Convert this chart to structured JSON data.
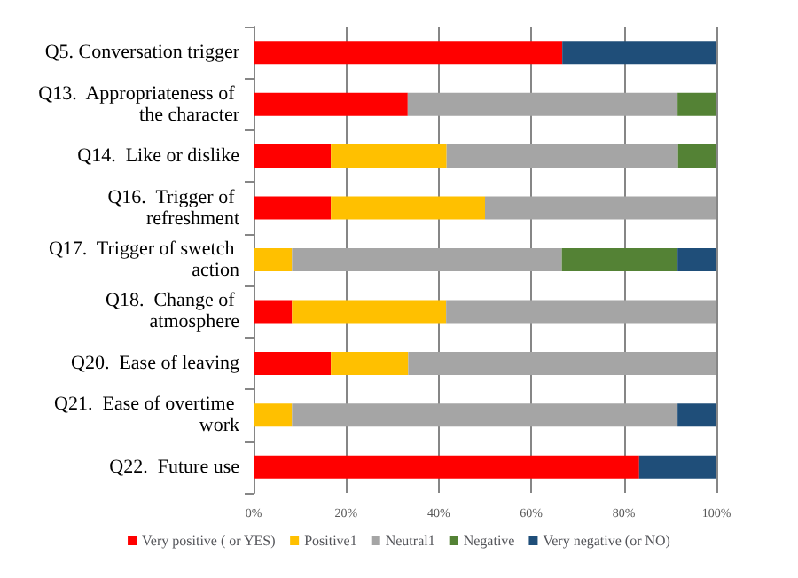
{
  "chart_data": {
    "type": "bar",
    "orientation": "horizontal",
    "stacked": true,
    "categories": [
      "Q5. Conversation trigger",
      "Q13.  Appropriateness of the character",
      "Q14.  Like or dislike",
      "Q16.  Trigger of refreshment",
      "Q17.  Trigger of swetch action",
      "Q18.  Change of atmosphere",
      "Q20.  Ease of leaving",
      "Q21.  Ease of overtime work",
      "Q22.  Future use"
    ],
    "series": [
      {
        "name": "Very positive ( or YES)",
        "color": "#ff0000",
        "values": [
          66.7,
          33.3,
          16.7,
          16.7,
          0,
          8.3,
          16.7,
          0,
          83.3
        ]
      },
      {
        "name": "Positive1",
        "color": "#ffc000",
        "values": [
          0,
          0,
          25,
          33.3,
          8.3,
          33.3,
          16.7,
          8.3,
          0
        ]
      },
      {
        "name": "Neutral1",
        "color": "#a5a5a5",
        "values": [
          0,
          58.3,
          50,
          50,
          58.3,
          58.3,
          66.7,
          83.3,
          0
        ]
      },
      {
        "name": "Negative",
        "color": "#548235",
        "values": [
          0,
          8.3,
          8.3,
          0,
          25,
          0,
          0,
          0,
          0
        ]
      },
      {
        "name": "Very negative (or NO)",
        "color": "#1f4e79",
        "values": [
          33.3,
          0,
          0,
          0,
          8.3,
          0,
          0,
          8.3,
          16.7
        ]
      }
    ],
    "xlim": [
      0,
      100
    ],
    "xticks": [
      {
        "value": 0,
        "label": "0%"
      },
      {
        "value": 20,
        "label": "20%"
      },
      {
        "value": 40,
        "label": "40%"
      },
      {
        "value": 60,
        "label": "60%"
      },
      {
        "value": 80,
        "label": "80%"
      },
      {
        "value": 100,
        "label": "100%"
      }
    ],
    "grid": "x",
    "legend": "bottom"
  }
}
